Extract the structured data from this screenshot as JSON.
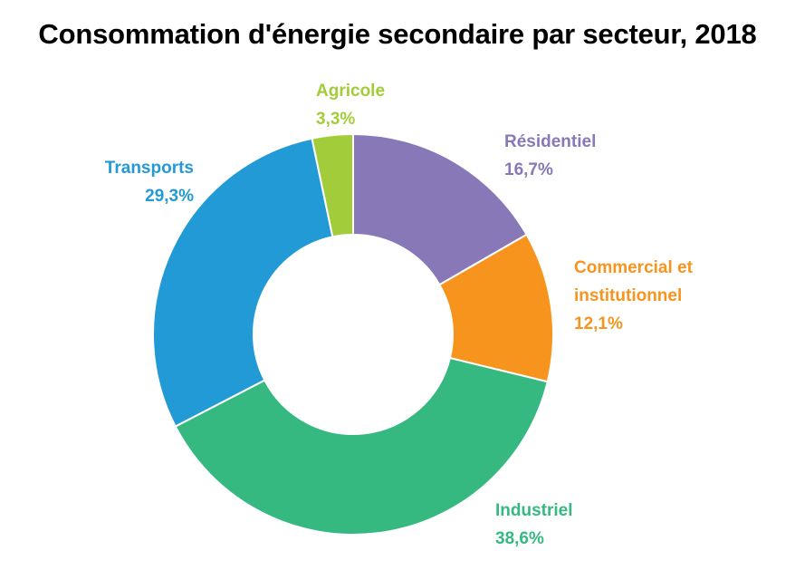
{
  "chart_data": {
    "type": "pie",
    "variant": "donut",
    "title": "Consommation d'énergie secondaire par secteur, 2018",
    "unit": "%",
    "slices": [
      {
        "name": "Résidentiel",
        "value": 16.7,
        "label": "16,7%",
        "color": "#8878b8"
      },
      {
        "name": "Commercial et institutionnel",
        "name_lines": [
          "Commercial et",
          "institutionnel"
        ],
        "value": 12.1,
        "label": "12,1%",
        "color": "#f7941d"
      },
      {
        "name": "Industriel",
        "value": 38.6,
        "label": "38,6%",
        "color": "#36b981"
      },
      {
        "name": "Transports",
        "value": 29.3,
        "label": "29,3%",
        "color": "#229ad6"
      },
      {
        "name": "Agricole",
        "value": 3.3,
        "label": "3,3%",
        "color": "#a3cc3a"
      }
    ],
    "legend": "none",
    "grid": false
  }
}
